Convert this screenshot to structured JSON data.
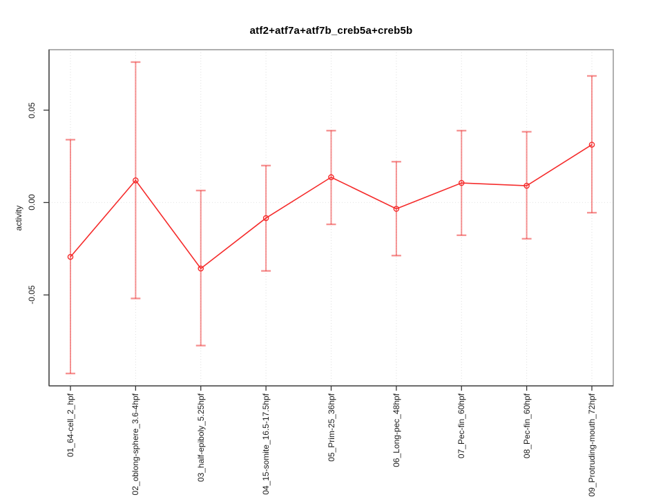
{
  "chart_data": {
    "type": "line",
    "title": "atf2+atf7a+atf7b_creb5a+creb5b",
    "ylabel": "activity",
    "xlabel": "",
    "legend": "none",
    "grid": {
      "vertical": "dotted at each category",
      "horizontal": "dotted at 0.00"
    },
    "categories": [
      "01_64-cell_2_hpf",
      "02_oblong-sphere_3.6-4hpf",
      "03_half-epiboly_5.25hpf",
      "04_15-somite_16.5-17.5hpf",
      "05_Prim-25_36hpf",
      "06_Long-pec_48hpf",
      "07_Pec-fin_60hpf",
      "08_Pec-fin_60hpf",
      "09_Protruding-mouth_72hpf"
    ],
    "series": [
      {
        "name": "activity",
        "marker": "open-circle",
        "values": [
          -0.0294,
          0.012,
          -0.0357,
          -0.0084,
          0.0137,
          -0.0034,
          0.0106,
          0.0091,
          0.0313
        ],
        "upper": [
          0.034,
          0.076,
          0.0065,
          0.02,
          0.0389,
          0.0221,
          0.0389,
          0.0383,
          0.0685
        ],
        "lower": [
          -0.0925,
          -0.0519,
          -0.0774,
          -0.037,
          -0.0118,
          -0.0287,
          -0.0177,
          -0.0196,
          -0.0055
        ]
      }
    ],
    "ylim": [
      -0.0992,
      0.0827
    ],
    "yticks": {
      "values": [
        -0.05,
        0.0,
        0.05
      ],
      "labels": [
        "-0.05",
        "0.00",
        "0.05"
      ]
    },
    "colors": {
      "line": "#f52b2b",
      "marker": "#f52b2b",
      "error_bar": "rgba(238,40,40,0.5)",
      "gridline": "#dedede",
      "zero_line": "#e2e2e2",
      "frame": "#9b9b9b",
      "axis_line": "#4f4f4f",
      "tick": "#333333",
      "text": "#1a1a1a"
    }
  }
}
